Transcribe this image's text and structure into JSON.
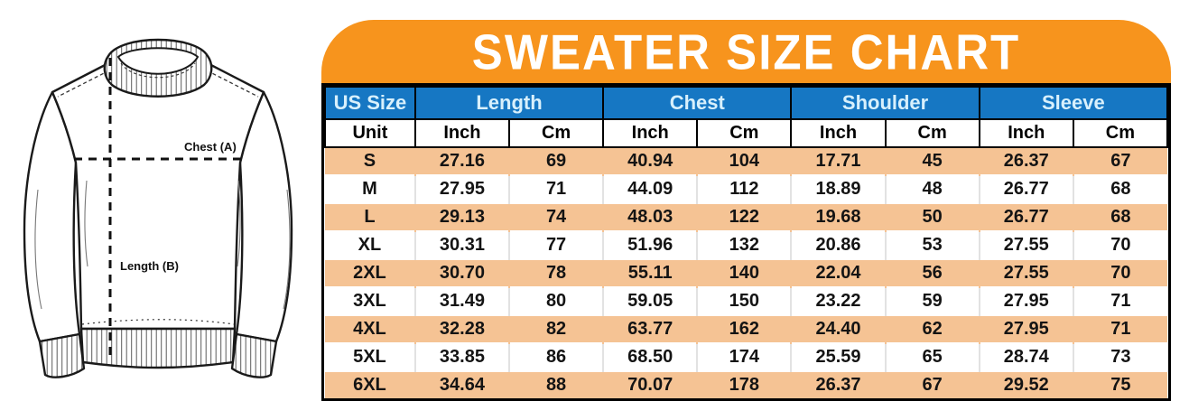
{
  "diagram": {
    "name": "sweater-line-drawing",
    "chest_label": "Chest (A)",
    "length_label": "Length (B)"
  },
  "chart_data": {
    "type": "table",
    "title": "SWEATER SIZE CHART",
    "column_groups": [
      "US Size",
      "Length",
      "Chest",
      "Shoulder",
      "Sleeve"
    ],
    "unit_row": [
      "Unit",
      "Inch",
      "Cm",
      "Inch",
      "Cm",
      "Inch",
      "Cm",
      "Inch",
      "Cm"
    ],
    "rows": [
      [
        "S",
        "27.16",
        "69",
        "40.94",
        "104",
        "17.71",
        "45",
        "26.37",
        "67"
      ],
      [
        "M",
        "27.95",
        "71",
        "44.09",
        "112",
        "18.89",
        "48",
        "26.77",
        "68"
      ],
      [
        "L",
        "29.13",
        "74",
        "48.03",
        "122",
        "19.68",
        "50",
        "26.77",
        "68"
      ],
      [
        "XL",
        "30.31",
        "77",
        "51.96",
        "132",
        "20.86",
        "53",
        "27.55",
        "70"
      ],
      [
        "2XL",
        "30.70",
        "78",
        "55.11",
        "140",
        "22.04",
        "56",
        "27.55",
        "70"
      ],
      [
        "3XL",
        "31.49",
        "80",
        "59.05",
        "150",
        "23.22",
        "59",
        "27.95",
        "71"
      ],
      [
        "4XL",
        "32.28",
        "82",
        "63.77",
        "162",
        "24.40",
        "62",
        "27.95",
        "71"
      ],
      [
        "5XL",
        "33.85",
        "86",
        "68.50",
        "174",
        "25.59",
        "65",
        "28.74",
        "73"
      ],
      [
        "6XL",
        "34.64",
        "88",
        "70.07",
        "178",
        "26.37",
        "67",
        "29.52",
        "75"
      ]
    ],
    "stripe_order": [
      "orange",
      "white",
      "orange",
      "white",
      "orange",
      "white",
      "orange",
      "white",
      "orange"
    ],
    "colors": {
      "banner_orange": "#F7941D",
      "header_blue": "#1677C3",
      "header_text": "#D8F0FC",
      "row_orange": "#F5C394",
      "row_white": "#FFFFFF",
      "border_black": "#000000",
      "cell_text": "#141414"
    }
  }
}
